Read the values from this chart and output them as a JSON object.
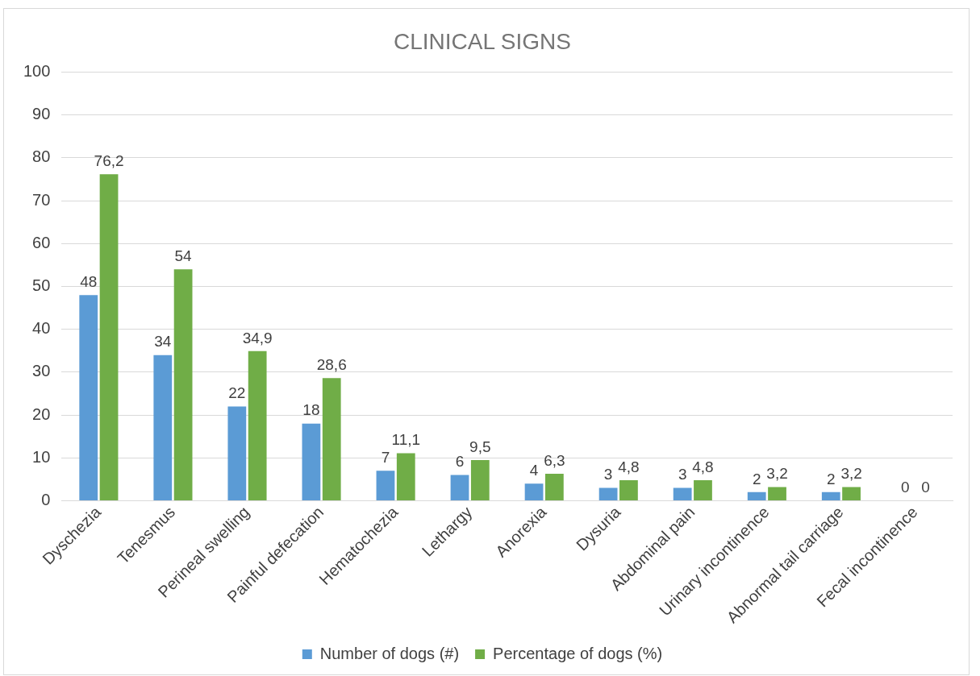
{
  "chart_data": {
    "type": "bar",
    "title": "CLINICAL SIGNS",
    "categories": [
      "Dyschezia",
      "Tenesmus",
      "Perineal swelling",
      "Painful defecation",
      "Hematochezia",
      "Lethargy",
      "Anorexia",
      "Dysuria",
      "Abdominal pain",
      "Urinary incontinence",
      "Abnormal tail carriage",
      "Fecal incontinence"
    ],
    "series": [
      {
        "name": "Number of dogs (#)",
        "color": "#5b9bd5",
        "values": [
          48,
          34,
          22,
          18,
          7,
          6,
          4,
          3,
          3,
          2,
          2,
          0
        ],
        "value_labels": [
          "48",
          "34",
          "22",
          "18",
          "7",
          "6",
          "4",
          "3",
          "3",
          "2",
          "2",
          "0"
        ]
      },
      {
        "name": "Percentage of dogs (%)",
        "color": "#70ad47",
        "values": [
          76.2,
          54,
          34.9,
          28.6,
          11.1,
          9.5,
          6.3,
          4.8,
          4.8,
          3.2,
          3.2,
          0
        ],
        "value_labels": [
          "76,2",
          "54",
          "34,9",
          "28,6",
          "11,1",
          "9,5",
          "6,3",
          "4,8",
          "4,8",
          "3,2",
          "3,2",
          "0"
        ]
      }
    ],
    "ylim": [
      0,
      100
    ],
    "yticks": [
      0,
      10,
      20,
      30,
      40,
      50,
      60,
      70,
      80,
      90,
      100
    ],
    "grid": "y",
    "legend": "bottom"
  }
}
